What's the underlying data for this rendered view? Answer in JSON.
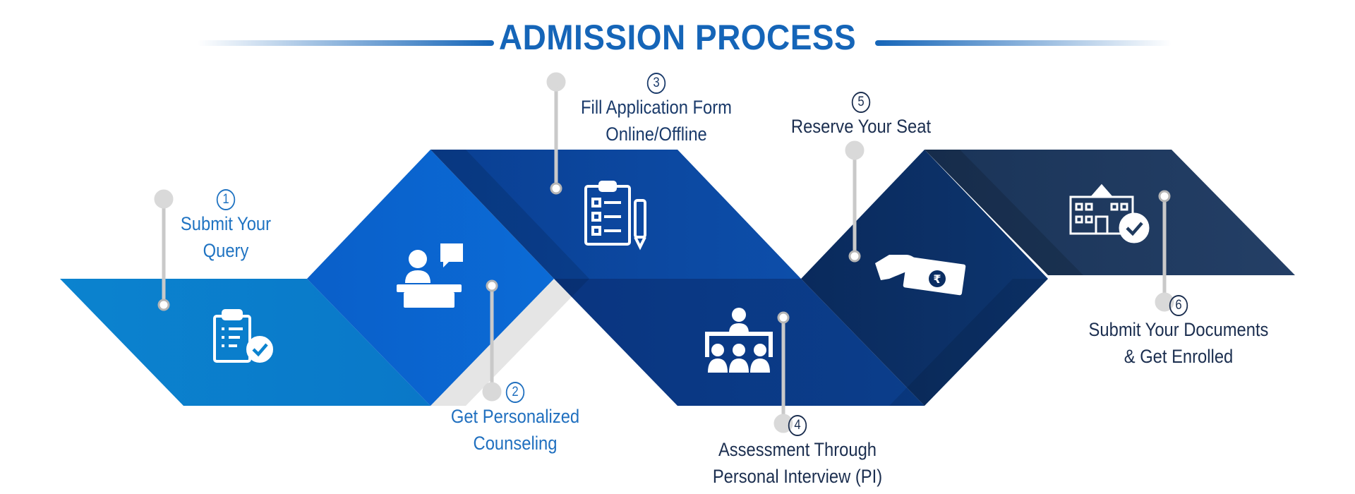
{
  "title": "ADMISSION PROCESS",
  "colors": {
    "title": "#1565b8",
    "step1": "#0b83cf",
    "step2": "#0a62cf",
    "step3": "#0c4aa0",
    "step4": "#0a3a82",
    "step5": "#0b2e63",
    "step6": "#1f3a5e",
    "text_light": "#1f6fbf",
    "text_dark": "#1b2e4f"
  },
  "steps": [
    {
      "number": "1",
      "line1": "Submit Your",
      "line2": "Query",
      "icon": "clipboard-check-icon"
    },
    {
      "number": "2",
      "line1": "Get Personalized",
      "line2": "Counseling",
      "icon": "counselor-desk-icon"
    },
    {
      "number": "3",
      "line1": "Fill Application Form",
      "line2": "Online/Offline",
      "icon": "application-form-icon"
    },
    {
      "number": "4",
      "line1": "Assessment Through",
      "line2": "Personal Interview (PI)",
      "icon": "interview-panel-icon"
    },
    {
      "number": "5",
      "line1": "Reserve Your Seat",
      "line2": "",
      "icon": "payment-hand-icon"
    },
    {
      "number": "6",
      "line1": "Submit Your Documents",
      "line2": "& Get Enrolled",
      "icon": "enrolled-school-icon"
    }
  ]
}
